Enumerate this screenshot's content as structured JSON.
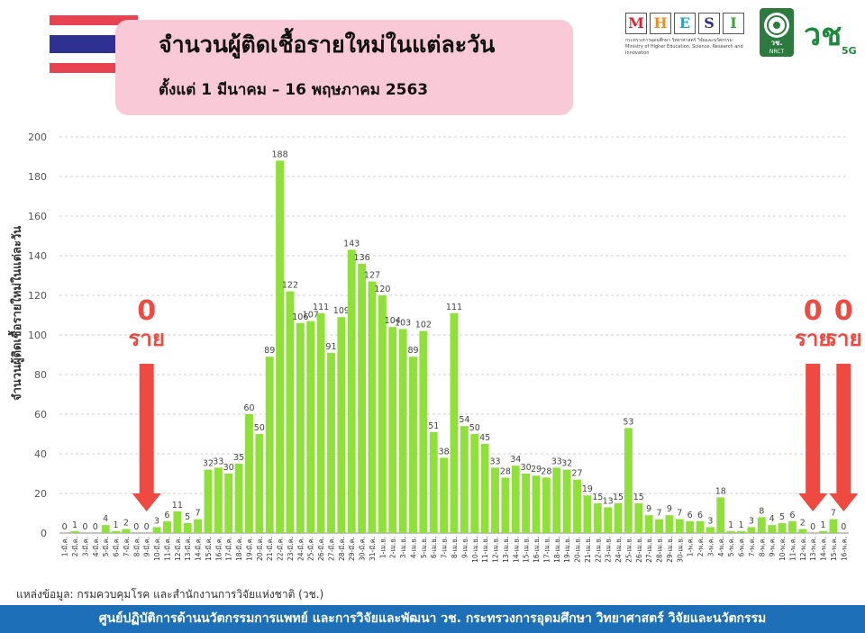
{
  "header": {
    "title": "จำนวนผู้ติดเชื้อรายใหม่ในแต่ละวัน",
    "subtitle": "ตั้งแต่ 1 มีนาคม – 16 พฤษภาคม 2563"
  },
  "logos": {
    "mhesi_letters": [
      "M",
      "H",
      "E",
      "S",
      "I"
    ],
    "mhesi_caption_th": "กระทรวงการอุดมศึกษา วิทยาศาสตร์ วิจัยและนวัตกรรม",
    "mhesi_caption_en": "Ministry of Higher Education, Science, Research and Innovation",
    "nbct_label": "วช.",
    "nbct_caption": "NRCT",
    "v5g_label": "วช",
    "v5g_suffix": "5G"
  },
  "annotations": {
    "zero_number": "0",
    "zero_unit": "ราย"
  },
  "source_text": "แหล่งข้อมูล: กรมควบคุมโรค และสำนักงานการวิจัยแห่งชาติ (วช.)",
  "footer_text": "ศูนย์ปฏิบัติการด้านนวัตกรรมการแพทย์ และการวิจัยและพัฒนา วช. กระทรวงการอุดมศึกษา วิทยาศาสตร์ วิจัยและนวัตกรรม",
  "colors": {
    "bar": "#8fe03a",
    "annotation": "#ef4a42",
    "footer": "#1d6fb8",
    "title_box": "#f9c9d7"
  },
  "chart_data": {
    "type": "bar",
    "title": "จำนวนผู้ติดเชื้อรายใหม่ในแต่ละวัน",
    "ylabel": "จำนวนผู้ติดเชื้อรายใหม่ในแต่ละวัน",
    "xlabel": "",
    "ylim": [
      0,
      200
    ],
    "yticks": [
      0,
      20,
      40,
      60,
      80,
      100,
      120,
      140,
      160,
      180,
      200
    ],
    "grid": true,
    "categories": [
      "1-มี.ค.",
      "2-มี.ค.",
      "3-มี.ค.",
      "4-มี.ค.",
      "5-มี.ค.",
      "6-มี.ค.",
      "7-มี.ค.",
      "8-มี.ค.",
      "9-มี.ค.",
      "10-มี.ค.",
      "11-มี.ค.",
      "12-มี.ค.",
      "13-มี.ค.",
      "14-มี.ค.",
      "15-มี.ค.",
      "16-มี.ค.",
      "17-มี.ค.",
      "18-มี.ค.",
      "19-มี.ค.",
      "20-มี.ค.",
      "21-มี.ค.",
      "22-มี.ค.",
      "23-มี.ค.",
      "24-มี.ค.",
      "25-มี.ค.",
      "26-มี.ค.",
      "27-มี.ค.",
      "28-มี.ค.",
      "29-มี.ค.",
      "30-มี.ค.",
      "31-มี.ค.",
      "1-เม.ย.",
      "2-เม.ย.",
      "3-เม.ย.",
      "4-เม.ย.",
      "5-เม.ย.",
      "6-เม.ย.",
      "7-เม.ย.",
      "8-เม.ย.",
      "9-เม.ย.",
      "10-เม.ย.",
      "11-เม.ย.",
      "12-เม.ย.",
      "13-เม.ย.",
      "14-เม.ย.",
      "15-เม.ย.",
      "16-เม.ย.",
      "17-เม.ย.",
      "18-เม.ย.",
      "19-เม.ย.",
      "20-เม.ย.",
      "21-เม.ย.",
      "22-เม.ย.",
      "23-เม.ย.",
      "24-เม.ย.",
      "25-เม.ย.",
      "26-เม.ย.",
      "27-เม.ย.",
      "28-เม.ย.",
      "29-เม.ย.",
      "30-เม.ย.",
      "1-พ.ค.",
      "2-พ.ค.",
      "3-พ.ค.",
      "4-พ.ค.",
      "5-พ.ค.",
      "6-พ.ค.",
      "7-พ.ค.",
      "8-พ.ค.",
      "9-พ.ค.",
      "10-พ.ค.",
      "11-พ.ค.",
      "12-พ.ค.",
      "13-พ.ค.",
      "14-พ.ค.",
      "15-พ.ค.",
      "16-พ.ค."
    ],
    "values": [
      0,
      1,
      0,
      0,
      4,
      1,
      2,
      0,
      0,
      3,
      6,
      11,
      5,
      7,
      32,
      33,
      30,
      35,
      60,
      50,
      89,
      188,
      122,
      106,
      107,
      111,
      91,
      109,
      143,
      136,
      127,
      120,
      104,
      103,
      89,
      102,
      51,
      38,
      111,
      54,
      50,
      45,
      33,
      28,
      34,
      30,
      29,
      28,
      33,
      32,
      27,
      19,
      15,
      13,
      15,
      53,
      15,
      9,
      7,
      9,
      7,
      6,
      6,
      3,
      18,
      1,
      1,
      3,
      8,
      4,
      5,
      6,
      2,
      0,
      1,
      7,
      0
    ],
    "zero_annotations": [
      "9-มี.ค.",
      "13-พ.ค.",
      "16-พ.ค."
    ]
  }
}
